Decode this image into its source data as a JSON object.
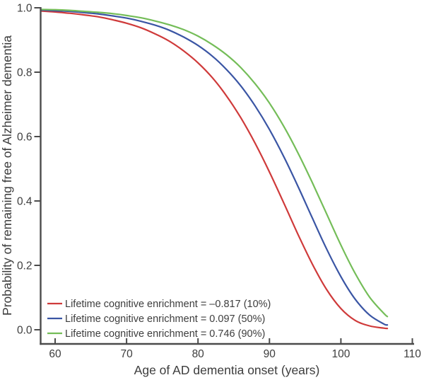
{
  "figure": {
    "background": "#ffffff",
    "axis_color": "#4b4b4b",
    "text_color": "#3d3d3d"
  },
  "chart_data": {
    "type": "line",
    "title": "",
    "xlabel": "Age of AD dementia onset (years)",
    "ylabel": "Probability of remaining free of Alzheimer dementia",
    "xlim": [
      58,
      110.5
    ],
    "ylim": [
      0,
      1
    ],
    "grid": "off",
    "legend_position": "inside-bottom-left",
    "x_ticks": [
      60,
      70,
      80,
      90,
      100,
      110
    ],
    "y_ticks": [
      "0.0",
      "0.2",
      "0.4",
      "0.6",
      "0.8",
      "1.0"
    ],
    "x": [
      58,
      60,
      62,
      64,
      66,
      68,
      70,
      72,
      74,
      76,
      78,
      80,
      82,
      84,
      86,
      88,
      90,
      92,
      94,
      96,
      98,
      100,
      102,
      104,
      106,
      106.5
    ],
    "series": [
      {
        "name": "Lifetime cognitive enrichment = –0.817 (10%)",
        "enrichment": -0.817,
        "percentile": "10%",
        "color": "#cf3a3a",
        "values": [
          0.99,
          0.987,
          0.983,
          0.978,
          0.972,
          0.963,
          0.952,
          0.938,
          0.919,
          0.896,
          0.866,
          0.829,
          0.783,
          0.726,
          0.658,
          0.579,
          0.49,
          0.394,
          0.296,
          0.204,
          0.125,
          0.066,
          0.029,
          0.012,
          0.005,
          0.004
        ]
      },
      {
        "name": "Lifetime cognitive enrichment = 0.097 (50%)",
        "enrichment": 0.097,
        "percentile": "50%",
        "color": "#3a55a4",
        "values": [
          0.993,
          0.991,
          0.989,
          0.985,
          0.981,
          0.975,
          0.968,
          0.958,
          0.946,
          0.93,
          0.909,
          0.883,
          0.85,
          0.808,
          0.757,
          0.695,
          0.622,
          0.538,
          0.445,
          0.347,
          0.251,
          0.165,
          0.095,
          0.046,
          0.018,
          0.015
        ]
      },
      {
        "name": "Lifetime cognitive enrichment = 0.746 (90%)",
        "enrichment": 0.746,
        "percentile": "90%",
        "color": "#74bd58",
        "values": [
          0.995,
          0.994,
          0.992,
          0.989,
          0.986,
          0.982,
          0.976,
          0.969,
          0.959,
          0.947,
          0.932,
          0.912,
          0.886,
          0.854,
          0.814,
          0.764,
          0.704,
          0.632,
          0.549,
          0.457,
          0.36,
          0.263,
          0.175,
          0.102,
          0.051,
          0.041
        ]
      }
    ]
  }
}
